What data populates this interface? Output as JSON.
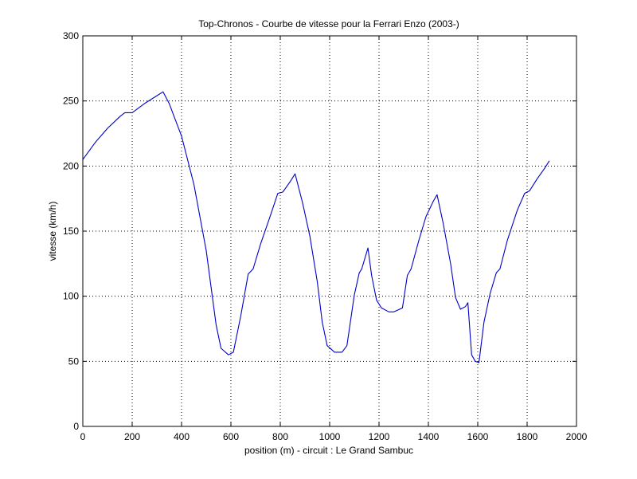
{
  "chart_data": {
    "type": "line",
    "title": "Top-Chronos - Courbe de vitesse pour la Ferrari Enzo (2003-)",
    "xlabel": "position (m) - circuit : Le Grand Sambuc",
    "ylabel": "vitesse (km/h)",
    "xlim": [
      0,
      2000
    ],
    "ylim": [
      0,
      300
    ],
    "xticks": [
      0,
      200,
      400,
      600,
      800,
      1000,
      1200,
      1400,
      1600,
      1800,
      2000
    ],
    "yticks": [
      0,
      50,
      100,
      150,
      200,
      250,
      300
    ],
    "grid": true,
    "series": [
      {
        "color": "#0000cc",
        "x": [
          0,
          50,
          100,
          150,
          170,
          200,
          250,
          300,
          325,
          350,
          400,
          450,
          500,
          540,
          560,
          590,
          610,
          640,
          670,
          690,
          720,
          760,
          790,
          810,
          840,
          860,
          890,
          920,
          950,
          970,
          990,
          1020,
          1050,
          1070,
          1100,
          1120,
          1130,
          1155,
          1170,
          1190,
          1210,
          1240,
          1260,
          1295,
          1315,
          1330,
          1360,
          1390,
          1420,
          1435,
          1460,
          1490,
          1510,
          1530,
          1550,
          1560,
          1575,
          1590,
          1605,
          1625,
          1650,
          1675,
          1690,
          1720,
          1760,
          1790,
          1810,
          1840,
          1870,
          1890
        ],
        "y": [
          205,
          218,
          229,
          238,
          241,
          241,
          248,
          254,
          257,
          248,
          223,
          186,
          135,
          78,
          60,
          55,
          57,
          85,
          117,
          121,
          140,
          162,
          179,
          180,
          188,
          194,
          172,
          146,
          111,
          80,
          62,
          57,
          57,
          62,
          101,
          118,
          121,
          137,
          116,
          97,
          91,
          88,
          88,
          91,
          116,
          121,
          142,
          161,
          173,
          178,
          156,
          125,
          99,
          90,
          92,
          95,
          55,
          50,
          49,
          80,
          102,
          118,
          121,
          143,
          166,
          179,
          181,
          190,
          198,
          204
        ]
      }
    ]
  }
}
